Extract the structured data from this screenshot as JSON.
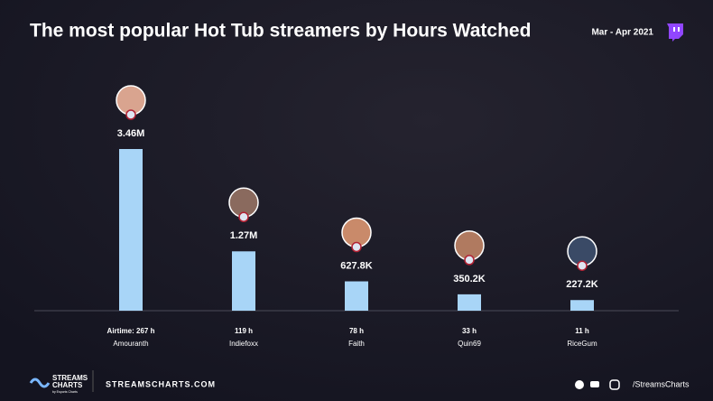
{
  "header": {
    "title": "The most popular Hot Tub streamers by Hours Watched",
    "period": "Mar - Apr 2021"
  },
  "chart_data": {
    "type": "bar",
    "categories": [
      "Amouranth",
      "Indiefoxx",
      "Faith",
      "Quin69",
      "RiceGum"
    ],
    "airtime_labels": [
      "Airtime: 267 h",
      "119 h",
      "78 h",
      "33 h",
      "11 h"
    ],
    "values": [
      3460000,
      1270000,
      627800,
      350200,
      227200
    ],
    "value_labels": [
      "3.46M",
      "1.27M",
      "627.8K",
      "350.2K",
      "227.2K"
    ],
    "color": "#a8d5f7"
  },
  "footer": {
    "brand_line1": "STREAMS",
    "brand_line2": "CHARTS",
    "brand_sub": "by Esports Charts",
    "site": "STREAMSCHARTS.COM",
    "handle": "/StreamsCharts"
  }
}
